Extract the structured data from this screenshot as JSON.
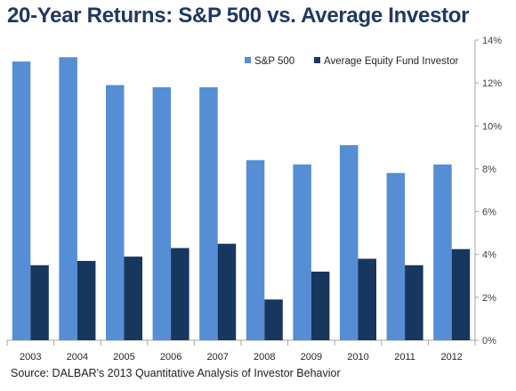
{
  "chart_data": {
    "type": "bar",
    "title": "20-Year Returns: S&P 500 vs. Average Investor",
    "source": "Source: DALBAR's 2013  Quantitative Analysis of Investor Behavior",
    "categories": [
      "2003",
      "2004",
      "2005",
      "2006",
      "2007",
      "2008",
      "2009",
      "2010",
      "2011",
      "2012"
    ],
    "series": [
      {
        "name": "S&P 500",
        "color": "#558ed5",
        "values": [
          13.0,
          13.2,
          11.9,
          11.8,
          11.8,
          8.4,
          8.2,
          9.1,
          7.8,
          8.2
        ]
      },
      {
        "name": "Average Equity Fund Investor",
        "color": "#17375e",
        "values": [
          3.5,
          3.7,
          3.9,
          4.3,
          4.5,
          1.9,
          3.2,
          3.8,
          3.5,
          4.25
        ]
      }
    ],
    "y_ticks": [
      "0%",
      "2%",
      "4%",
      "6%",
      "8%",
      "10%",
      "12%",
      "14%"
    ],
    "ylim": [
      0,
      14
    ],
    "y_axis_side": "right",
    "grid": false,
    "legend": "top-right",
    "xlabel": "",
    "ylabel": ""
  }
}
